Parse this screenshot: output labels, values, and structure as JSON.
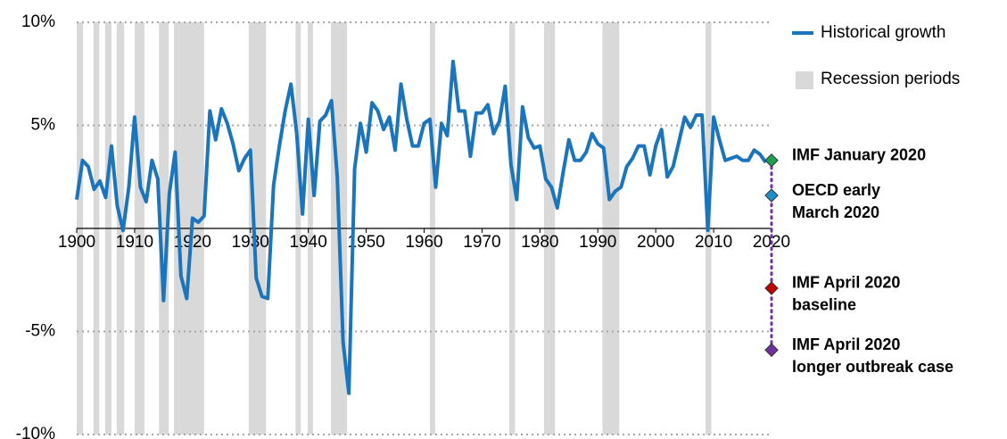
{
  "chart_data": {
    "type": "line",
    "x": [
      1900,
      1901,
      1902,
      1903,
      1904,
      1905,
      1906,
      1907,
      1908,
      1909,
      1910,
      1911,
      1912,
      1913,
      1914,
      1915,
      1916,
      1917,
      1918,
      1919,
      1920,
      1921,
      1922,
      1923,
      1924,
      1925,
      1926,
      1927,
      1928,
      1929,
      1930,
      1931,
      1932,
      1933,
      1934,
      1935,
      1936,
      1937,
      1938,
      1939,
      1940,
      1941,
      1942,
      1943,
      1944,
      1945,
      1946,
      1947,
      1948,
      1949,
      1950,
      1951,
      1952,
      1953,
      1954,
      1955,
      1956,
      1957,
      1958,
      1959,
      1960,
      1961,
      1962,
      1963,
      1964,
      1965,
      1966,
      1967,
      1968,
      1969,
      1970,
      1971,
      1972,
      1973,
      1974,
      1975,
      1976,
      1977,
      1978,
      1979,
      1980,
      1981,
      1982,
      1983,
      1984,
      1985,
      1986,
      1987,
      1988,
      1989,
      1990,
      1991,
      1992,
      1993,
      1994,
      1995,
      1996,
      1997,
      1998,
      1999,
      2000,
      2001,
      2002,
      2003,
      2004,
      2005,
      2006,
      2007,
      2008,
      2009,
      2010,
      2011,
      2012,
      2013,
      2014,
      2015,
      2016,
      2017,
      2018,
      2019
    ],
    "series": [
      {
        "name": "Historical growth",
        "color": "#1a75bc",
        "values": [
          1.4,
          3.3,
          3.0,
          1.9,
          2.3,
          1.5,
          4.0,
          1.1,
          -0.1,
          2.0,
          5.4,
          2.0,
          1.3,
          3.3,
          2.4,
          -3.5,
          1.7,
          3.7,
          -2.3,
          -3.4,
          0.5,
          0.3,
          0.6,
          5.7,
          4.3,
          5.8,
          5.1,
          4.1,
          2.8,
          3.4,
          3.8,
          -2.4,
          -3.3,
          -3.4,
          2.1,
          4.0,
          5.7,
          7.0,
          4.6,
          0.7,
          5.3,
          1.6,
          5.2,
          5.5,
          6.2,
          2.5,
          -5.5,
          -8.0,
          2.9,
          5.1,
          3.7,
          6.1,
          5.7,
          4.8,
          5.4,
          3.8,
          7.0,
          5.3,
          4.0,
          4.0,
          5.1,
          5.3,
          2.0,
          5.1,
          4.5,
          8.1,
          5.7,
          5.7,
          3.5,
          5.6,
          5.6,
          6.0,
          4.6,
          5.2,
          6.9,
          3.1,
          1.4,
          5.9,
          4.4,
          3.9,
          4.0,
          2.4,
          2.0,
          1.0,
          2.7,
          4.3,
          3.3,
          3.3,
          3.7,
          4.6,
          4.1,
          3.9,
          1.4,
          1.8,
          2.0,
          3.0,
          3.4,
          4.0,
          4.0,
          2.6,
          4.0,
          4.8,
          2.5,
          3.0,
          4.2,
          5.4,
          4.9,
          5.5,
          5.5,
          -0.1,
          5.4,
          4.3,
          3.3,
          3.4,
          3.5,
          3.3,
          3.3,
          3.8,
          3.6,
          3.2
        ]
      }
    ],
    "recessions": {
      "name": "Recession periods",
      "color": "#d9d9d9",
      "periods": [
        [
          1900,
          1901.1
        ],
        [
          1902.9,
          1903.9
        ],
        [
          1904.9,
          1906
        ],
        [
          1906.9,
          1908.2
        ],
        [
          1910,
          1911.7
        ],
        [
          1914.2,
          1915.9
        ],
        [
          1916.8,
          1922
        ],
        [
          1929.7,
          1932.7
        ],
        [
          1937.8,
          1938.7
        ],
        [
          1939.9,
          1940.8
        ],
        [
          1943.9,
          1946.7
        ],
        [
          1961,
          1961.9
        ],
        [
          1974.7,
          1975.7
        ],
        [
          1980.7,
          1982.6
        ],
        [
          1990.8,
          1993.7
        ],
        [
          2008.6,
          2009.6
        ]
      ]
    },
    "forecasts": [
      {
        "label": [
          "IMF January 2020"
        ],
        "x": 2020,
        "value": 3.3,
        "color": "#1fa050"
      },
      {
        "label": [
          "OECD  early",
          "March 2020"
        ],
        "x": 2020,
        "value": 1.6,
        "color": "#1a8fd0",
        "text_color": "#1a75bc"
      },
      {
        "label": [
          "IMF April 2020",
          "baseline"
        ],
        "x": 2020,
        "value": -2.9,
        "color": "#c00000"
      },
      {
        "label": [
          "IMF April 2020",
          "longer outbreak case"
        ],
        "x": 2020,
        "value": -5.9,
        "color": "#7030a0"
      }
    ],
    "connector_color": "#7030a0",
    "xlim": [
      1900,
      2020
    ],
    "xticks": [
      1900,
      1910,
      1920,
      1930,
      1940,
      1950,
      1960,
      1970,
      1980,
      1990,
      2000,
      2010,
      2020
    ],
    "ylim": [
      -10,
      10
    ],
    "yticks": [
      {
        "value": 10,
        "label": "10%"
      },
      {
        "value": 5,
        "label": "5%"
      },
      {
        "value": -5,
        "label": "-5%"
      },
      {
        "value": -10,
        "label": "-10%"
      }
    ],
    "grid": true,
    "legend": "upper right"
  }
}
